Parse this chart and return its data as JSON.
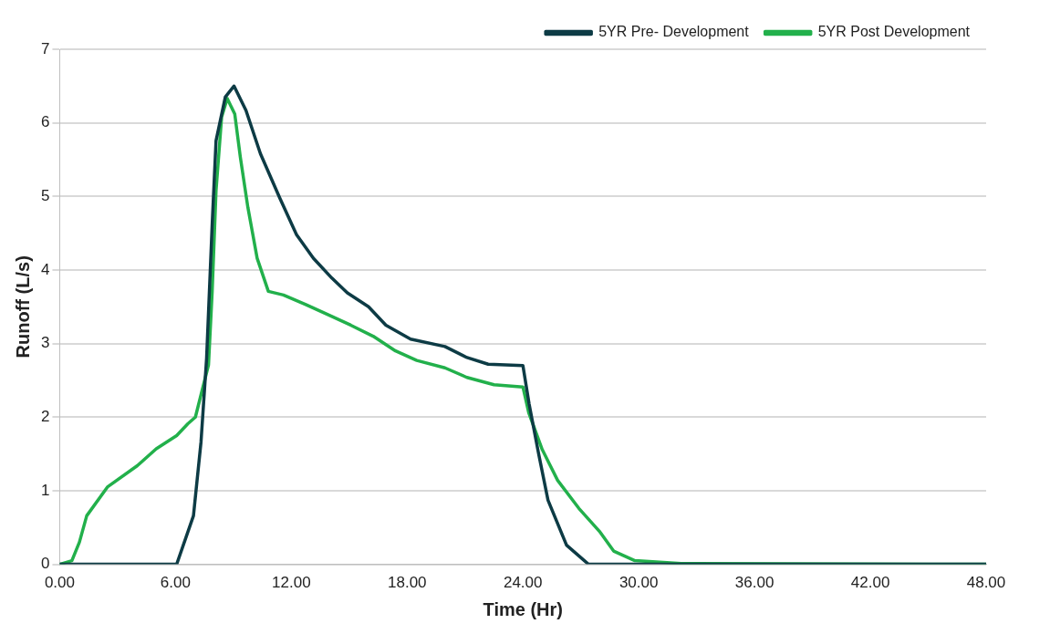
{
  "chart_data": {
    "type": "line",
    "xlabel": "Time (Hr)",
    "ylabel": "Runoff (L/s)",
    "xlim": [
      0,
      48
    ],
    "xticks": [
      {
        "value": 0,
        "label": "0.00"
      },
      {
        "value": 6,
        "label": "6.00"
      },
      {
        "value": 12,
        "label": "12.00"
      },
      {
        "value": 18,
        "label": "18.00"
      },
      {
        "value": 24,
        "label": "24.00"
      },
      {
        "value": 30,
        "label": "30.00"
      },
      {
        "value": 36,
        "label": "36.00"
      },
      {
        "value": 42,
        "label": "42.00"
      },
      {
        "value": 48,
        "label": "48.00"
      }
    ],
    "ylim": [
      0,
      7
    ],
    "yticks": [
      0,
      1,
      2,
      3,
      4,
      5,
      6,
      7
    ],
    "grid": "y",
    "legend": "top right",
    "marker": "none",
    "line_style": "solid",
    "series": [
      {
        "name": "5YR Pre- Development",
        "color": "#0d3b45",
        "x": [
          0,
          6.06,
          6.93,
          7.32,
          7.61,
          7.9,
          8.1,
          8.58,
          9.03,
          9.65,
          10.4,
          11.4,
          12.27,
          13.14,
          14.1,
          14.9,
          16.0,
          16.9,
          18.18,
          19.96,
          21.1,
          22.2,
          24.0,
          24.32,
          24.8,
          25.3,
          26.26,
          27.4,
          48
        ],
        "values": [
          0,
          0,
          0.66,
          1.66,
          2.8,
          4.62,
          5.76,
          6.35,
          6.5,
          6.17,
          5.58,
          4.98,
          4.48,
          4.16,
          3.89,
          3.69,
          3.5,
          3.25,
          3.06,
          2.96,
          2.81,
          2.72,
          2.7,
          2.18,
          1.52,
          0.87,
          0.26,
          0,
          0
        ]
      },
      {
        "name": "5YR Post Development",
        "color": "#22b04b",
        "x": [
          0,
          0.63,
          1.02,
          1.4,
          2.47,
          4.02,
          5.0,
          6.06,
          6.64,
          7.03,
          7.71,
          7.9,
          8.1,
          8.39,
          8.68,
          9.07,
          9.36,
          9.75,
          10.23,
          10.81,
          11.59,
          12.75,
          13.92,
          15.08,
          16.24,
          17.4,
          18.5,
          19.96,
          21.1,
          22.5,
          24.0,
          24.3,
          25.0,
          25.8,
          26.9,
          27.96,
          28.7,
          29.8,
          32.2,
          48
        ],
        "values": [
          0,
          0.05,
          0.3,
          0.66,
          1.05,
          1.34,
          1.57,
          1.75,
          1.91,
          2.0,
          2.71,
          3.71,
          5.08,
          6.08,
          6.33,
          6.12,
          5.53,
          4.85,
          4.16,
          3.71,
          3.66,
          3.53,
          3.39,
          3.25,
          3.1,
          2.9,
          2.77,
          2.67,
          2.54,
          2.44,
          2.41,
          2.06,
          1.56,
          1.14,
          0.76,
          0.45,
          0.18,
          0.05,
          0.01,
          0
        ]
      }
    ]
  }
}
